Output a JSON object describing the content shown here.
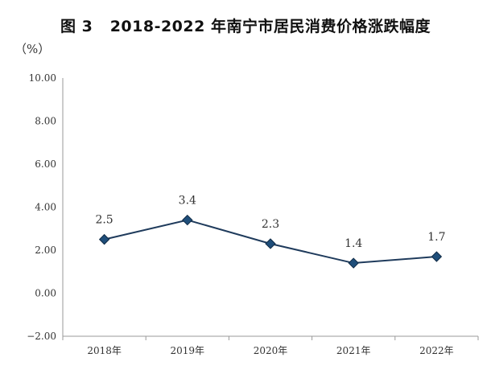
{
  "chart_data": {
    "type": "line",
    "title": "图 3   2018-2022 年南宁市居民消费价格涨跌幅度",
    "ylabel": "（%）",
    "xlabel": "",
    "categories": [
      "2018年",
      "2019年",
      "2020年",
      "2021年",
      "2022年"
    ],
    "values": [
      2.5,
      3.4,
      2.3,
      1.4,
      1.7
    ],
    "data_labels": [
      "2.5",
      "3.4",
      "2.3",
      "1.4",
      "1.7"
    ],
    "ylim": [
      -2,
      10
    ],
    "yticks": [
      10,
      8,
      6,
      4,
      2,
      0,
      -2
    ],
    "ytick_labels": [
      "10.00",
      "8.00",
      "6.00",
      "4.00",
      "2.00",
      "0.00",
      "−2.00"
    ],
    "grid": false,
    "legend": "none",
    "line_color": "#1f3b5c",
    "marker_color": "#1f4e7a"
  }
}
